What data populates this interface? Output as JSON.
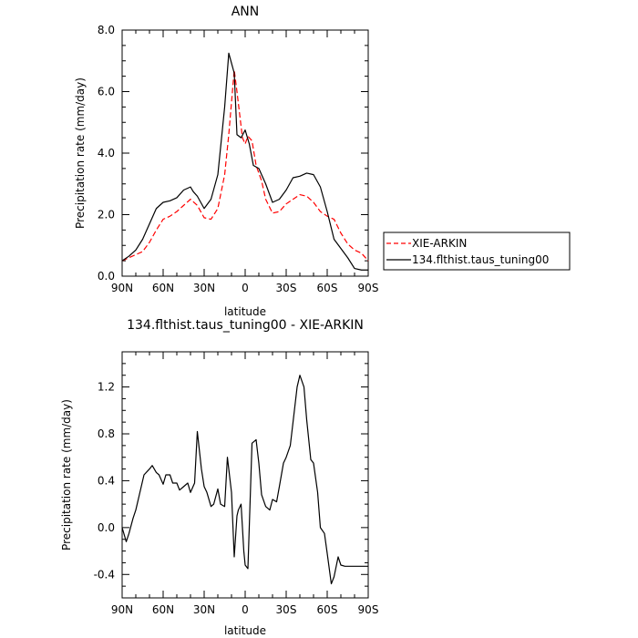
{
  "chart_data": [
    {
      "type": "line",
      "title": "ANN",
      "xlabel": "latitude",
      "ylabel": "Precipitation rate (mm/day)",
      "xlim": [
        90,
        -90
      ],
      "ylim": [
        0,
        8
      ],
      "x_ticks": [
        90,
        60,
        30,
        0,
        -30,
        -60,
        -90
      ],
      "x_tick_labels": [
        "90N",
        "60N",
        "30N",
        "0",
        "30S",
        "60S",
        "90S"
      ],
      "y_ticks": [
        0,
        2,
        4,
        6,
        8
      ],
      "y_tick_labels": [
        "0.0",
        "2.0",
        "4.0",
        "6.0",
        "8.0"
      ],
      "legend_position": "right",
      "series": [
        {
          "name": "XIE-ARKIN",
          "color": "#ff0000",
          "dash": "dashed",
          "x": [
            90,
            85,
            80,
            75,
            70,
            65,
            60,
            55,
            50,
            45,
            40,
            35,
            30,
            25,
            20,
            15,
            12,
            8,
            6,
            2,
            0,
            -2,
            -5,
            -8,
            -12,
            -15,
            -20,
            -25,
            -30,
            -35,
            -40,
            -45,
            -50,
            -55,
            -60,
            -65,
            -70,
            -75,
            -80,
            -85,
            -90
          ],
          "values": [
            0.5,
            0.6,
            0.7,
            0.8,
            1.1,
            1.5,
            1.85,
            1.95,
            2.1,
            2.3,
            2.5,
            2.3,
            1.9,
            1.85,
            2.2,
            3.3,
            4.6,
            6.7,
            6.0,
            4.5,
            4.3,
            4.55,
            4.4,
            3.6,
            3.1,
            2.5,
            2.05,
            2.1,
            2.35,
            2.5,
            2.65,
            2.6,
            2.4,
            2.1,
            1.95,
            1.85,
            1.4,
            1.05,
            0.85,
            0.75,
            0.5
          ]
        },
        {
          "name": "134.flthist.taus_tuning00",
          "color": "#000000",
          "dash": "solid",
          "x": [
            90,
            85,
            80,
            75,
            70,
            65,
            60,
            55,
            50,
            45,
            40,
            38,
            35,
            30,
            25,
            20,
            15,
            12,
            8,
            6,
            3,
            0,
            -3,
            -6,
            -10,
            -15,
            -20,
            -25,
            -30,
            -35,
            -40,
            -45,
            -50,
            -55,
            -60,
            -65,
            -70,
            -75,
            -80,
            -85,
            -90
          ],
          "values": [
            0.5,
            0.65,
            0.85,
            1.2,
            1.7,
            2.2,
            2.4,
            2.45,
            2.55,
            2.8,
            2.9,
            2.75,
            2.6,
            2.2,
            2.5,
            3.3,
            5.5,
            7.25,
            6.6,
            4.6,
            4.5,
            4.75,
            4.3,
            3.6,
            3.5,
            3.0,
            2.4,
            2.5,
            2.8,
            3.2,
            3.25,
            3.35,
            3.3,
            2.9,
            2.1,
            1.2,
            0.9,
            0.6,
            0.25,
            0.2,
            0.2
          ]
        }
      ]
    },
    {
      "type": "line",
      "title": "134.flthist.taus_tuning00 - XIE-ARKIN",
      "xlabel": "latitude",
      "ylabel": "Precipitation rate (mm/day)",
      "xlim": [
        90,
        -90
      ],
      "ylim": [
        -0.6,
        1.5
      ],
      "x_ticks": [
        90,
        60,
        30,
        0,
        -30,
        -60,
        -90
      ],
      "x_tick_labels": [
        "90N",
        "60N",
        "30N",
        "0",
        "30S",
        "60S",
        "90S"
      ],
      "y_ticks": [
        -0.4,
        0.0,
        0.4,
        0.8,
        1.2
      ],
      "y_tick_labels": [
        "-0.4",
        "0.0",
        "0.4",
        "0.8",
        "1.2"
      ],
      "series": [
        {
          "color": "#000000",
          "dash": "solid",
          "x": [
            90,
            87,
            85,
            82,
            80,
            77,
            74,
            70,
            68,
            65,
            63,
            60,
            58,
            55,
            53,
            50,
            48,
            45,
            42,
            40,
            37,
            35,
            32,
            30,
            28,
            25,
            23,
            20,
            18,
            15,
            13,
            10,
            8,
            6,
            5,
            3,
            1,
            0,
            -2,
            -5,
            -8,
            -10,
            -12,
            -15,
            -18,
            -20,
            -23,
            -25,
            -28,
            -30,
            -33,
            -35,
            -38,
            -40,
            -43,
            -45,
            -48,
            -50,
            -53,
            -55,
            -58,
            -60,
            -63,
            -65,
            -68,
            -70,
            -73,
            -75,
            -78,
            -80,
            -83,
            -85,
            -88,
            -90
          ],
          "values": [
            0.0,
            -0.12,
            -0.05,
            0.08,
            0.15,
            0.3,
            0.45,
            0.5,
            0.53,
            0.47,
            0.45,
            0.37,
            0.45,
            0.45,
            0.38,
            0.38,
            0.32,
            0.35,
            0.38,
            0.3,
            0.38,
            0.82,
            0.5,
            0.35,
            0.3,
            0.18,
            0.2,
            0.33,
            0.2,
            0.18,
            0.6,
            0.3,
            -0.25,
            0.1,
            0.15,
            0.2,
            -0.2,
            -0.32,
            -0.35,
            0.72,
            0.75,
            0.55,
            0.28,
            0.18,
            0.15,
            0.24,
            0.22,
            0.35,
            0.55,
            0.6,
            0.7,
            0.9,
            1.2,
            1.3,
            1.2,
            0.92,
            0.58,
            0.55,
            0.3,
            0.0,
            -0.05,
            -0.22,
            -0.48,
            -0.42,
            -0.25,
            -0.32,
            -0.33,
            -0.33,
            -0.33,
            -0.33,
            -0.33,
            -0.33,
            -0.33,
            -0.33
          ]
        }
      ]
    }
  ]
}
